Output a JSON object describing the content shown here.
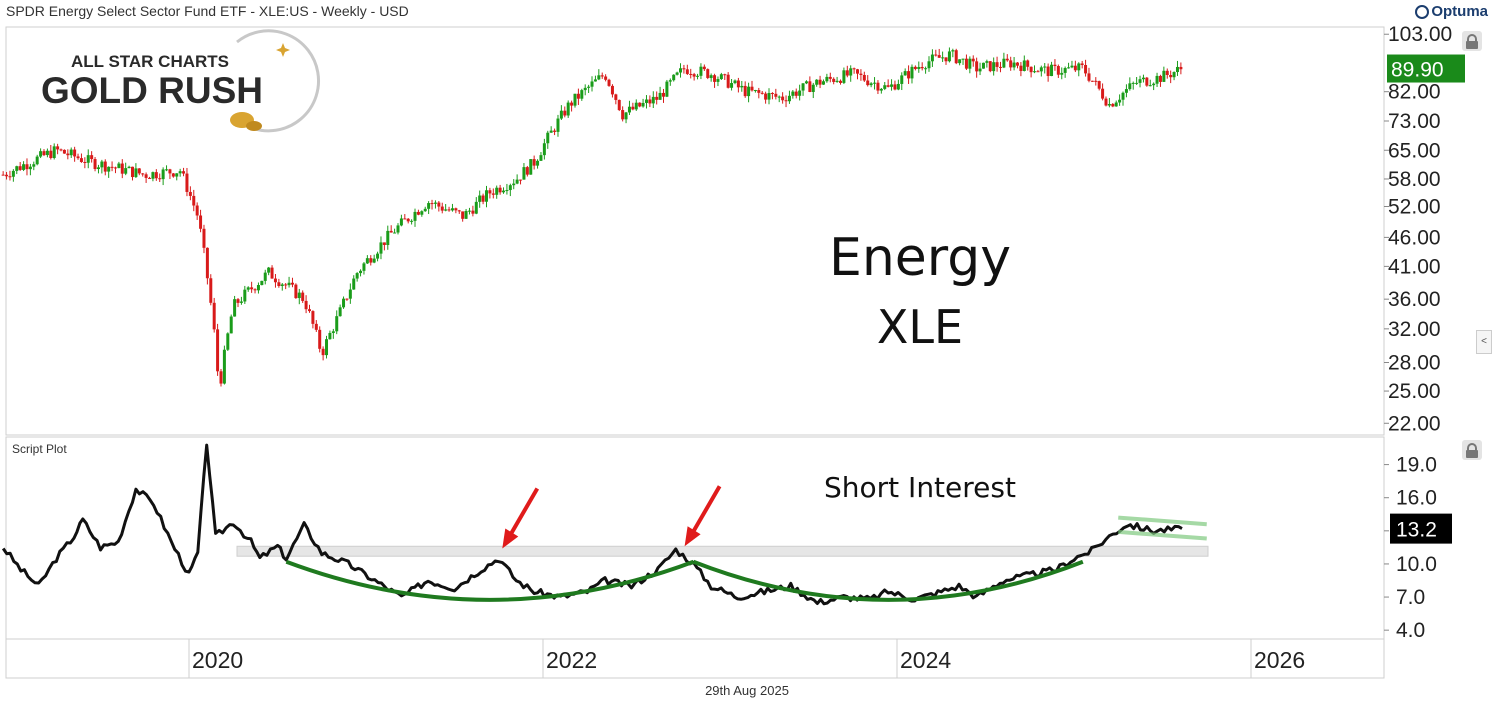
{
  "header": {
    "title": "SPDR Energy Select Sector Fund ETF - XLE:US - Weekly - USD",
    "brand": "Optuma"
  },
  "logo": {
    "line1": "ALL STAR CHARTS",
    "line2": "GOLD RUSH"
  },
  "footer": {
    "date": "29th Aug 2025"
  },
  "colors": {
    "up_candle": "#1a9c1a",
    "down_candle": "#d81a1a",
    "price_badge": "#1a8a1a",
    "arc": "#1f7a1f",
    "arrow": "#e01b1b",
    "short_interest_line": "#111111",
    "band": "#e6e6e6",
    "channel": "#7fc97f"
  },
  "chart_data": [
    {
      "type": "candlestick",
      "title": "Energy",
      "subtitle": "XLE",
      "x_ticks": [
        "2020",
        "2022",
        "2024",
        "2026"
      ],
      "y_ticks": [
        "103.00",
        "82.00",
        "73.00",
        "65.00",
        "58.00",
        "52.00",
        "46.00",
        "41.00",
        "36.00",
        "32.00",
        "28.00",
        "25.00",
        "22.00"
      ],
      "y_scale": "log",
      "ylim": [
        21,
        106
      ],
      "last_price": "89.90",
      "close_anchors": [
        [
          "2019.0",
          59
        ],
        [
          "2019.3",
          65
        ],
        [
          "2019.5",
          62
        ],
        [
          "2019.8",
          59
        ],
        [
          "2020.0",
          60
        ],
        [
          "2020.1",
          50
        ],
        [
          "2020.2",
          30
        ],
        [
          "2020.22",
          25
        ],
        [
          "2020.3",
          35
        ],
        [
          "2020.5",
          40
        ],
        [
          "2020.7",
          36
        ],
        [
          "2020.8",
          29
        ],
        [
          "2020.9",
          34
        ],
        [
          "2021.0",
          40
        ],
        [
          "2021.2",
          47
        ],
        [
          "2021.4",
          53
        ],
        [
          "2021.6",
          50
        ],
        [
          "2021.75",
          55
        ],
        [
          "2021.9",
          58
        ],
        [
          "2022.0",
          62
        ],
        [
          "2022.2",
          78
        ],
        [
          "2022.4",
          88
        ],
        [
          "2022.5",
          75
        ],
        [
          "2022.7",
          80
        ],
        [
          "2022.85",
          90
        ],
        [
          "2023.0",
          88
        ],
        [
          "2023.2",
          82
        ],
        [
          "2023.4",
          80
        ],
        [
          "2023.6",
          85
        ],
        [
          "2023.8",
          88
        ],
        [
          "2024.0",
          83
        ],
        [
          "2024.2",
          92
        ],
        [
          "2024.35",
          95
        ],
        [
          "2024.5",
          90
        ],
        [
          "2024.7",
          92
        ],
        [
          "2024.9",
          89
        ],
        [
          "2025.1",
          90
        ],
        [
          "2025.25",
          78
        ],
        [
          "2025.4",
          85
        ],
        [
          "2025.55",
          87
        ],
        [
          "2025.66",
          89.9
        ]
      ]
    },
    {
      "type": "line",
      "pane_label": "Script Plot",
      "title": "Short Interest",
      "y_ticks": [
        "19.0",
        "16.0",
        "13.0",
        "10.0",
        "7.0",
        "4.0"
      ],
      "ylim": [
        3.2,
        21.5
      ],
      "last_value": "13.2",
      "highlight_band": [
        10.7,
        11.6
      ],
      "x": [
        "2019.0",
        "2019.1",
        "2019.2",
        "2019.3",
        "2019.4",
        "2019.45",
        "2019.55",
        "2019.65",
        "2019.75",
        "2019.85",
        "2019.95",
        "2020.05",
        "2020.1",
        "2020.15",
        "2020.2",
        "2020.3",
        "2020.4",
        "2020.45",
        "2020.55",
        "2020.6",
        "2020.7",
        "2020.8",
        "2020.95",
        "2021.1",
        "2021.25",
        "2021.4",
        "2021.55",
        "2021.7",
        "2021.8",
        "2021.9",
        "2022.0",
        "2022.15",
        "2022.3",
        "2022.4",
        "2022.55",
        "2022.7",
        "2022.8",
        "2022.9",
        "2023.0",
        "2023.15",
        "2023.3",
        "2023.45",
        "2023.6",
        "2023.75",
        "2023.9",
        "2024.0",
        "2024.15",
        "2024.3",
        "2024.4",
        "2024.5",
        "2024.65",
        "2024.8",
        "2024.95",
        "2025.05",
        "2025.15",
        "2025.25",
        "2025.35",
        "2025.5",
        "2025.66"
      ],
      "y": [
        11.5,
        9.5,
        8.0,
        10.5,
        12.5,
        14.0,
        11.5,
        12.0,
        16.8,
        15.5,
        12.0,
        9.0,
        11.0,
        21.0,
        12.5,
        13.8,
        12.0,
        10.5,
        11.6,
        10.5,
        13.5,
        11.0,
        10.0,
        8.5,
        7.0,
        8.5,
        7.8,
        9.5,
        10.5,
        8.5,
        7.5,
        7.0,
        7.5,
        8.5,
        8.0,
        9.5,
        11.3,
        10.0,
        8.0,
        7.0,
        7.5,
        8.0,
        6.5,
        7.0,
        6.8,
        7.5,
        6.8,
        7.5,
        8.0,
        7.0,
        8.5,
        9.0,
        9.5,
        10.5,
        11.2,
        12.5,
        13.6,
        13.0,
        13.2
      ],
      "annotations": [
        "up-arrow-2021.9",
        "up-arrow-2022.9"
      ]
    }
  ]
}
